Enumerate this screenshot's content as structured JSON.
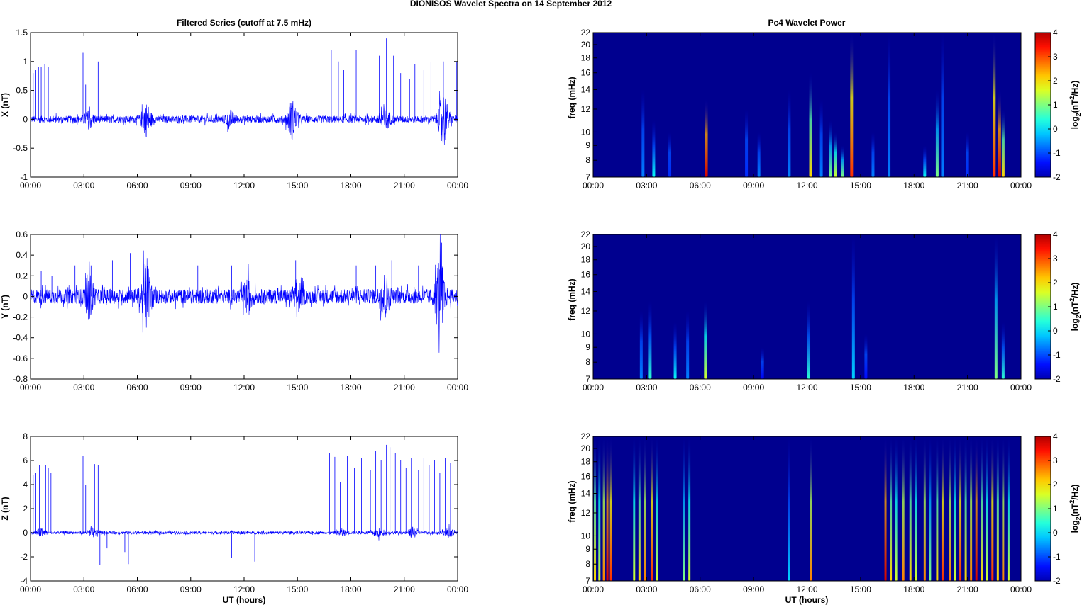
{
  "chart_data": {
    "type": "figure",
    "title": "DIONISOS Wavelet Spectra on 14 September 2012",
    "left_title": "Filtered Series (cutoff at 7.5 mHz)",
    "right_title": "Pc4 Wavelet Power",
    "xlabel": "UT (hours)",
    "xticks": [
      "00:00",
      "03:00",
      "06:00",
      "09:00",
      "12:00",
      "15:00",
      "18:00",
      "21:00",
      "00:00"
    ],
    "xlim_hours": [
      0,
      24
    ],
    "series": [
      {
        "type": "line",
        "name": "X",
        "ylabel": "X (nT)",
        "ylim": [
          -1,
          1.5
        ],
        "yticks": [
          "1.5",
          "1",
          "0.5",
          "0",
          "-0.5",
          "-1"
        ],
        "ytick_values": [
          1.5,
          1,
          0.5,
          0,
          -0.5,
          -1
        ],
        "noise_base": 0.06,
        "bursts": [
          [
            3.3,
            0.12
          ],
          [
            6.5,
            0.25
          ],
          [
            11.2,
            0.12
          ],
          [
            14.7,
            0.3
          ],
          [
            19.9,
            0.22
          ],
          [
            23.2,
            0.45
          ]
        ],
        "spikes": [
          [
            0.15,
            0.8
          ],
          [
            0.3,
            0.85
          ],
          [
            0.45,
            0.9
          ],
          [
            0.6,
            0.9
          ],
          [
            0.8,
            0.95
          ],
          [
            1.0,
            0.9
          ],
          [
            1.1,
            0.93
          ],
          [
            2.45,
            1.15
          ],
          [
            2.95,
            1.15
          ],
          [
            3.1,
            0.6
          ],
          [
            3.8,
            1.0
          ],
          [
            16.9,
            1.2
          ],
          [
            17.3,
            1.0
          ],
          [
            17.6,
            0.85
          ],
          [
            18.3,
            1.2
          ],
          [
            18.8,
            0.9
          ],
          [
            19.2,
            1.0
          ],
          [
            19.6,
            1.1
          ],
          [
            20.0,
            1.4
          ],
          [
            20.4,
            1.1
          ],
          [
            20.8,
            0.8
          ],
          [
            21.3,
            0.7
          ],
          [
            21.6,
            0.95
          ],
          [
            22.1,
            0.85
          ],
          [
            22.5,
            1.0
          ],
          [
            23.2,
            1.0
          ],
          [
            23.95,
            1.0
          ]
        ]
      },
      {
        "type": "line",
        "name": "Y",
        "ylabel": "Y (nT)",
        "ylim": [
          -0.8,
          0.6
        ],
        "yticks": [
          "0.6",
          "0.4",
          "0.2",
          "0",
          "-0.2",
          "-0.4",
          "-0.6",
          "-0.8"
        ],
        "ytick_values": [
          0.6,
          0.4,
          0.2,
          0,
          -0.2,
          -0.4,
          -0.6,
          -0.8
        ],
        "noise_base": 0.07,
        "bursts": [
          [
            3.3,
            0.16
          ],
          [
            6.5,
            0.3
          ],
          [
            12.2,
            0.12
          ],
          [
            15.0,
            0.12
          ],
          [
            19.9,
            0.18
          ],
          [
            23.0,
            0.35
          ]
        ],
        "spikes": [
          [
            0.6,
            0.25
          ],
          [
            1.2,
            0.2
          ],
          [
            2.5,
            0.3
          ],
          [
            3.4,
            0.3
          ],
          [
            4.6,
            0.35
          ],
          [
            5.6,
            0.42
          ],
          [
            6.45,
            0.3
          ],
          [
            9.4,
            0.3
          ],
          [
            11.3,
            0.3
          ],
          [
            14.9,
            0.35
          ],
          [
            18.3,
            0.3
          ],
          [
            19.4,
            0.3
          ],
          [
            20.3,
            0.35
          ],
          [
            21.8,
            0.3
          ],
          [
            23.1,
            0.52
          ]
        ]
      },
      {
        "type": "line",
        "name": "Z",
        "ylabel": "Z (nT)",
        "ylim": [
          -4,
          8
        ],
        "yticks": [
          "8",
          "6",
          "4",
          "2",
          "0",
          "-2",
          "-4"
        ],
        "ytick_values": [
          8,
          6,
          4,
          2,
          0,
          -2,
          -4
        ],
        "noise_base": 0.12,
        "bursts": [
          [
            0.6,
            0.3
          ],
          [
            3.5,
            0.3
          ],
          [
            17.5,
            0.25
          ],
          [
            19.5,
            0.3
          ],
          [
            21.5,
            0.35
          ],
          [
            23.5,
            0.3
          ]
        ],
        "spikes": [
          [
            0.15,
            4.8
          ],
          [
            0.3,
            5.0
          ],
          [
            0.5,
            5.6
          ],
          [
            0.7,
            5.2
          ],
          [
            0.85,
            5.6
          ],
          [
            1.0,
            5.4
          ],
          [
            1.15,
            5.0
          ],
          [
            2.45,
            6.6
          ],
          [
            2.95,
            6.4
          ],
          [
            3.1,
            4.0
          ],
          [
            3.6,
            5.7
          ],
          [
            3.8,
            5.6
          ],
          [
            3.9,
            -2.7
          ],
          [
            4.3,
            -1.3
          ],
          [
            5.3,
            -1.6
          ],
          [
            5.5,
            -2.6
          ],
          [
            11.3,
            -2.1
          ],
          [
            12.6,
            -2.4
          ],
          [
            16.8,
            6.6
          ],
          [
            17.1,
            6.3
          ],
          [
            17.4,
            4.2
          ],
          [
            17.8,
            6.4
          ],
          [
            18.2,
            5.4
          ],
          [
            18.6,
            6.2
          ],
          [
            19.1,
            5.2
          ],
          [
            19.4,
            6.8
          ],
          [
            19.7,
            6.0
          ],
          [
            20.0,
            7.3
          ],
          [
            20.2,
            7.1
          ],
          [
            20.5,
            6.6
          ],
          [
            20.8,
            6.0
          ],
          [
            21.1,
            5.4
          ],
          [
            21.4,
            6.2
          ],
          [
            21.8,
            5.2
          ],
          [
            22.1,
            6.2
          ],
          [
            22.4,
            5.6
          ],
          [
            22.7,
            6.0
          ],
          [
            23.0,
            5.0
          ],
          [
            23.3,
            6.2
          ],
          [
            23.6,
            5.8
          ],
          [
            23.9,
            6.6
          ]
        ]
      }
    ],
    "spectra": [
      {
        "type": "heatmap",
        "ylabel": "freq (mHz)",
        "yscale": "log",
        "ylim": [
          7,
          22
        ],
        "yticks": [
          "22",
          "20",
          "18",
          "16",
          "14",
          "12",
          "10",
          "9",
          "8",
          "7"
        ],
        "ytick_values": [
          22,
          20,
          18,
          16,
          14,
          12,
          10,
          9,
          8,
          7
        ],
        "streaks_hour_power_topfreq": [
          [
            2.8,
            -0.5,
            14
          ],
          [
            3.4,
            0.3,
            11
          ],
          [
            4.3,
            -1,
            10
          ],
          [
            6.35,
            3.5,
            13
          ],
          [
            8.6,
            -1,
            12
          ],
          [
            9.3,
            -0.5,
            10
          ],
          [
            11.0,
            -0.5,
            14
          ],
          [
            12.2,
            2,
            16
          ],
          [
            12.8,
            -0.5,
            13
          ],
          [
            13.3,
            1,
            11
          ],
          [
            13.6,
            1.5,
            10
          ],
          [
            14.0,
            1,
            9
          ],
          [
            14.5,
            3,
            22
          ],
          [
            15.7,
            -0.5,
            10
          ],
          [
            16.6,
            -0.5,
            22
          ],
          [
            18.6,
            0.3,
            9
          ],
          [
            19.3,
            1,
            14
          ],
          [
            19.6,
            -0.5,
            22
          ],
          [
            21.0,
            -1,
            10
          ],
          [
            22.5,
            3,
            22
          ],
          [
            22.8,
            3.5,
            14
          ],
          [
            23.0,
            2,
            12
          ]
        ]
      },
      {
        "type": "heatmap",
        "ylabel": "freq (mHz)",
        "yscale": "log",
        "ylim": [
          7,
          22
        ],
        "yticks": [
          "22",
          "20",
          "18",
          "16",
          "14",
          "12",
          "10",
          "9",
          "8",
          "7"
        ],
        "ytick_values": [
          22,
          20,
          18,
          16,
          14,
          12,
          10,
          9,
          8,
          7
        ],
        "streaks_hour_power_topfreq": [
          [
            2.7,
            -0.5,
            12
          ],
          [
            3.2,
            0.5,
            13
          ],
          [
            4.6,
            0.3,
            11
          ],
          [
            5.3,
            -0.5,
            12
          ],
          [
            6.3,
            1.5,
            13
          ],
          [
            9.5,
            -1.3,
            9
          ],
          [
            12.1,
            0.5,
            13
          ],
          [
            14.6,
            0,
            22
          ],
          [
            15.3,
            -1.2,
            10
          ],
          [
            22.6,
            1,
            22
          ],
          [
            23.0,
            0.5,
            11
          ]
        ]
      },
      {
        "type": "heatmap",
        "ylabel": "freq (mHz)",
        "yscale": "log",
        "ylim": [
          7,
          22
        ],
        "yticks": [
          "22",
          "20",
          "18",
          "16",
          "14",
          "12",
          "10",
          "9",
          "8",
          "7"
        ],
        "ytick_values": [
          22,
          20,
          18,
          16,
          14,
          12,
          10,
          9,
          8,
          7
        ],
        "streaks_hour_power_topfreq": [
          [
            0.1,
            2,
            22
          ],
          [
            0.35,
            1.5,
            22
          ],
          [
            0.6,
            2.5,
            22
          ],
          [
            0.8,
            3.5,
            22
          ],
          [
            1.0,
            3,
            22
          ],
          [
            2.3,
            1.5,
            22
          ],
          [
            2.6,
            2,
            22
          ],
          [
            2.9,
            2.5,
            22
          ],
          [
            3.3,
            3,
            22
          ],
          [
            3.6,
            1.5,
            22
          ],
          [
            5.1,
            1,
            22
          ],
          [
            5.4,
            1.5,
            22
          ],
          [
            11.0,
            0,
            22
          ],
          [
            12.2,
            2.5,
            22
          ],
          [
            16.4,
            3.5,
            22
          ],
          [
            16.7,
            2,
            22
          ],
          [
            17.0,
            1.5,
            22
          ],
          [
            17.4,
            2.5,
            22
          ],
          [
            17.8,
            2,
            22
          ],
          [
            18.1,
            1.5,
            22
          ],
          [
            18.6,
            2.5,
            22
          ],
          [
            18.9,
            1,
            22
          ],
          [
            19.3,
            2,
            22
          ],
          [
            19.6,
            3,
            22
          ],
          [
            20.0,
            2.5,
            22
          ],
          [
            20.3,
            1.5,
            22
          ],
          [
            20.6,
            3,
            22
          ],
          [
            20.9,
            2,
            22
          ],
          [
            21.2,
            2.5,
            22
          ],
          [
            21.5,
            3.5,
            22
          ],
          [
            21.8,
            2,
            22
          ],
          [
            22.1,
            1.5,
            22
          ],
          [
            22.4,
            3,
            22
          ],
          [
            22.7,
            2,
            22
          ],
          [
            23.0,
            2.5,
            22
          ],
          [
            23.3,
            1.5,
            22
          ]
        ]
      }
    ],
    "colorbar": {
      "range": [
        -2,
        4
      ],
      "colormap": "jet",
      "ticks": [
        "4",
        "3",
        "2",
        "1",
        "0",
        "-1",
        "-2"
      ],
      "tick_values": [
        4,
        3,
        2,
        1,
        0,
        -1,
        -2
      ],
      "label_parts": [
        "log",
        "2",
        "(nT",
        "2",
        "/Hz)"
      ]
    },
    "colors": {
      "line": "#0000ff",
      "background": "#00008f"
    }
  }
}
